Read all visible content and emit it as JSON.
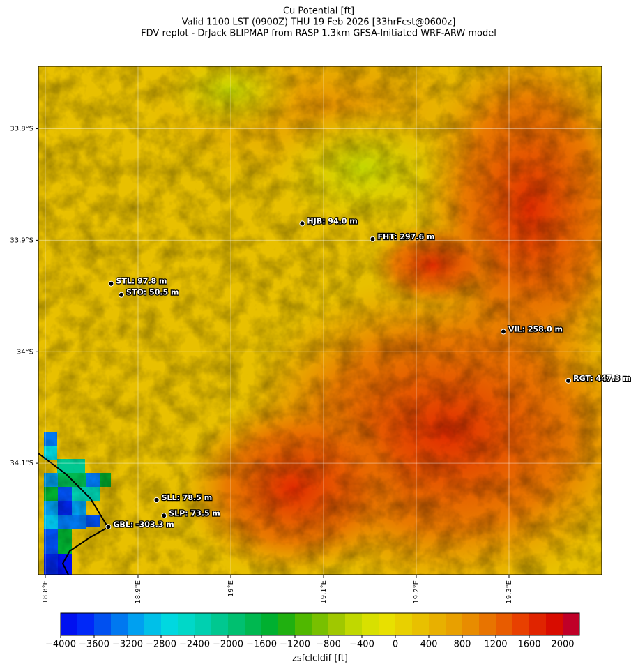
{
  "chart_data": {
    "type": "map",
    "title": "Cu Potential [ft]",
    "subtitle": [
      "Valid 1100 LST (0900Z) THU 19 Feb 2026 [33hrFcst@0600z]",
      "FDV replot - DrJack BLIPMAP from RASP 1.3km GFSA-Initiated WRF-ARW model"
    ],
    "xlim": [
      18.7925,
      19.4
    ],
    "ylim": [
      -34.2,
      -33.744
    ],
    "xticks": [
      {
        "value": 18.8,
        "label": "18.8°E"
      },
      {
        "value": 18.9,
        "label": "18.9°E"
      },
      {
        "value": 19.0,
        "label": "19°E"
      },
      {
        "value": 19.1,
        "label": "19.1°E"
      },
      {
        "value": 19.2,
        "label": "19.2°E"
      },
      {
        "value": 19.3,
        "label": "19.3°E"
      }
    ],
    "yticks": [
      {
        "value": -33.8,
        "label": "33.8°S"
      },
      {
        "value": -33.9,
        "label": "33.9°S"
      },
      {
        "value": -34.0,
        "label": "34°S"
      },
      {
        "value": -34.1,
        "label": "34.1°S"
      }
    ],
    "grid": true,
    "stations": [
      {
        "label": "HJB: 94.0 m",
        "lon": 19.077,
        "lat": -33.885
      },
      {
        "label": "FHT: 297.6 m",
        "lon": 19.153,
        "lat": -33.899
      },
      {
        "label": "STL: 97.8 m",
        "lon": 18.871,
        "lat": -33.939
      },
      {
        "label": "STO: 50.5 m",
        "lon": 18.882,
        "lat": -33.949
      },
      {
        "label": "VIL: 258.0 m",
        "lon": 19.294,
        "lat": -33.982
      },
      {
        "label": "RGT: 447.3 m",
        "lon": 19.364,
        "lat": -34.026
      },
      {
        "label": "SLL: 78.5 m",
        "lon": 18.92,
        "lat": -34.133
      },
      {
        "label": "SLP: 73.5 m",
        "lon": 18.928,
        "lat": -34.147
      },
      {
        "label": "GBL: -303.3 m",
        "lon": 18.868,
        "lat": -34.157
      }
    ],
    "colorbar": {
      "label": "zsfclcldif [ft]",
      "lim": [
        -4000,
        2200
      ],
      "ticks": [
        {
          "value": -4000,
          "label": "−4000"
        },
        {
          "value": -3600,
          "label": "−3600"
        },
        {
          "value": -3200,
          "label": "−3200"
        },
        {
          "value": -2800,
          "label": "−2800"
        },
        {
          "value": -2400,
          "label": "−2400"
        },
        {
          "value": -2000,
          "label": "−2000"
        },
        {
          "value": -1600,
          "label": "−1600"
        },
        {
          "value": -1200,
          "label": "−1200"
        },
        {
          "value": -800,
          "label": "−800"
        },
        {
          "value": -400,
          "label": "−400"
        },
        0,
        400,
        800,
        1200,
        1600,
        2000
      ],
      "colors": [
        "#0010f0",
        "#0028f8",
        "#0050f0",
        "#0078f0",
        "#00a0f0",
        "#00c0e8",
        "#00d8e0",
        "#00d8c8",
        "#00d0b0",
        "#00c890",
        "#00c070",
        "#00b850",
        "#00b030",
        "#20b010",
        "#50b800",
        "#78c000",
        "#a0c800",
        "#c0d800",
        "#d8e000",
        "#e8e000",
        "#e8d000",
        "#e8c000",
        "#e8b000",
        "#e8a000",
        "#e88c00",
        "#e87400",
        "#e85c00",
        "#e84000",
        "#e02400",
        "#d80c00",
        "#c00028"
      ]
    }
  }
}
